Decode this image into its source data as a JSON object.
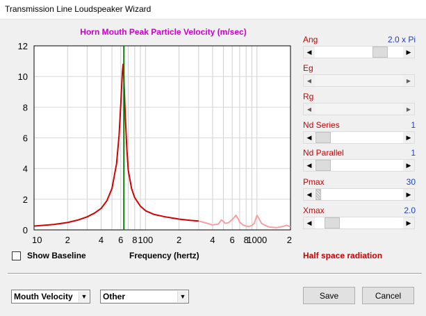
{
  "window": {
    "title": "Transmission Line Loudspeaker Wizard"
  },
  "chart_data": {
    "type": "line",
    "title": "Horn Mouth Peak Particle Velocity (m/sec)",
    "xlabel": "Frequency (hertz)",
    "ylabel": "",
    "xscale": "log",
    "xlim": [
      10,
      2000
    ],
    "ylim": [
      0,
      12
    ],
    "ytick_labels": [
      "0",
      "2",
      "4",
      "6",
      "8",
      "10",
      "12"
    ],
    "xtick_labels": [
      "10",
      "2",
      "4",
      "6",
      "8",
      "100",
      "2",
      "4",
      "6",
      "8",
      "1000",
      "2"
    ],
    "grid": true,
    "marker_frequency": 64,
    "series": [
      {
        "color": "#d40000",
        "x": [
          10,
          15,
          20,
          25,
          30,
          35,
          40,
          45,
          50,
          55,
          58,
          60,
          62,
          63,
          64,
          66,
          68,
          70,
          75,
          80,
          90,
          100,
          120,
          150,
          200,
          250,
          300
        ],
        "y": [
          0.25,
          0.35,
          0.48,
          0.65,
          0.85,
          1.1,
          1.4,
          1.9,
          2.7,
          4.3,
          6.2,
          8.2,
          10.3,
          10.8,
          9.8,
          7.3,
          5.3,
          3.9,
          2.7,
          2.1,
          1.55,
          1.25,
          1.0,
          0.85,
          0.7,
          0.62,
          0.58
        ]
      },
      {
        "color": "#f4a0a0",
        "x": [
          300,
          350,
          400,
          450,
          480,
          500,
          520,
          560,
          600,
          650,
          680,
          700,
          750,
          800,
          850,
          900,
          950,
          1000,
          1050,
          1100,
          1200,
          1300,
          1500,
          1700,
          1850,
          2000
        ],
        "y": [
          0.58,
          0.45,
          0.32,
          0.38,
          0.65,
          0.55,
          0.42,
          0.48,
          0.68,
          0.95,
          0.7,
          0.5,
          0.32,
          0.25,
          0.22,
          0.28,
          0.45,
          0.95,
          0.7,
          0.42,
          0.28,
          0.18,
          0.15,
          0.22,
          0.3,
          0.2
        ]
      }
    ]
  },
  "controls": [
    {
      "label": "Ang",
      "value": "2.0 x Pi",
      "enabled": true,
      "thumb": 0.78
    },
    {
      "label": "Eg",
      "value": "",
      "enabled": false
    },
    {
      "label": "Rg",
      "value": "",
      "enabled": false
    },
    {
      "label": "Nd  Series",
      "value": "1",
      "enabled": true,
      "thumb": 0.0
    },
    {
      "label": "Nd  Parallel",
      "value": "1",
      "enabled": true,
      "thumb": 0.0
    },
    {
      "label": "Pmax",
      "value": "30",
      "enabled": true,
      "thumb": 0.0
    },
    {
      "label": "Xmax",
      "value": "2.0",
      "enabled": true,
      "thumb": 0.12
    }
  ],
  "status": {
    "radiation": "Half space radiation"
  },
  "baseline": {
    "label": "Show Baseline",
    "checked": false
  },
  "dropdowns": {
    "plot_type": "Mouth Velocity",
    "category": "Other"
  },
  "buttons": {
    "save": "Save",
    "cancel": "Cancel"
  }
}
